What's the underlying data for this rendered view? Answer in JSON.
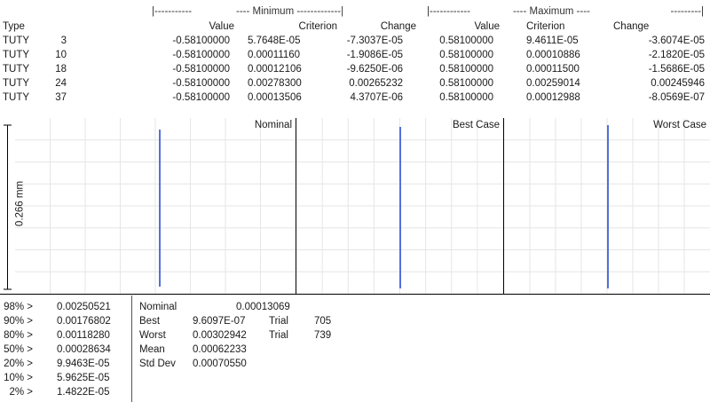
{
  "table": {
    "group_headers": {
      "min_left": "|-----------",
      "min_title": "---- Minimum -------------|",
      "max_left": "|------------",
      "max_title": "---- Maximum ----",
      "max_right": "---------|"
    },
    "columns": {
      "type": "Type",
      "value": "Value",
      "criterion": "Criterion",
      "change": "Change",
      "value2": "Value",
      "criterion2": "Criterion",
      "change2": "Change"
    },
    "rows": [
      {
        "type": "TUTY",
        "id": "3",
        "min_value": "-0.58100000",
        "min_criterion": "5.7648E-05",
        "min_change": "-7.3037E-05",
        "max_value": "0.58100000",
        "max_criterion": "9.4611E-05",
        "max_change": "-3.6074E-05"
      },
      {
        "type": "TUTY",
        "id": "10",
        "min_value": "-0.58100000",
        "min_criterion": "0.00011160",
        "min_change": "-1.9086E-05",
        "max_value": "0.58100000",
        "max_criterion": "0.00010886",
        "max_change": "-2.1820E-05"
      },
      {
        "type": "TUTY",
        "id": "18",
        "min_value": "-0.58100000",
        "min_criterion": "0.00012106",
        "min_change": "-9.6250E-06",
        "max_value": "0.58100000",
        "max_criterion": "0.00011500",
        "max_change": "-1.5686E-05"
      },
      {
        "type": "TUTY",
        "id": "24",
        "min_value": "-0.58100000",
        "min_criterion": "0.00278300",
        "min_change": "0.00265232",
        "max_value": "0.58100000",
        "max_criterion": "0.00259014",
        "max_change": "0.00245946"
      },
      {
        "type": "TUTY",
        "id": "37",
        "min_value": "-0.58100000",
        "min_criterion": "0.00013506",
        "min_change": "4.3707E-06",
        "max_value": "0.58100000",
        "max_criterion": "0.00012988",
        "max_change": "-8.0569E-07"
      }
    ]
  },
  "plots": {
    "scale_label": "0.266 mm",
    "panels": [
      {
        "title": "Nominal"
      },
      {
        "title": "Best Case"
      },
      {
        "title": "Worst Case"
      }
    ],
    "trace_color": "#2b4fd6",
    "grid_color": "#e6e6e6",
    "border_color": "#000000"
  },
  "stats": {
    "percentiles": [
      {
        "label": "98% >",
        "value": "0.00250521"
      },
      {
        "label": "90% >",
        "value": "0.00176802"
      },
      {
        "label": "80% >",
        "value": "0.00118280"
      },
      {
        "label": "50% >",
        "value": "0.00028634"
      },
      {
        "label": "20% >",
        "value": "9.9463E-05"
      },
      {
        "label": "10% >",
        "value": "5.9625E-05"
      },
      {
        "label": "2% >",
        "value": "1.4822E-05"
      }
    ],
    "nominal": {
      "label": "Nominal",
      "value": "0.00013069"
    },
    "best": {
      "label": "Best",
      "value": "9.6097E-07",
      "trial_label": "Trial",
      "trial": "705"
    },
    "worst": {
      "label": "Worst",
      "value": "0.00302942",
      "trial_label": "Trial",
      "trial": "739"
    },
    "mean": {
      "label": "Mean",
      "value": "0.00062233"
    },
    "std": {
      "label": "Std Dev",
      "value": "0.00070550"
    }
  }
}
